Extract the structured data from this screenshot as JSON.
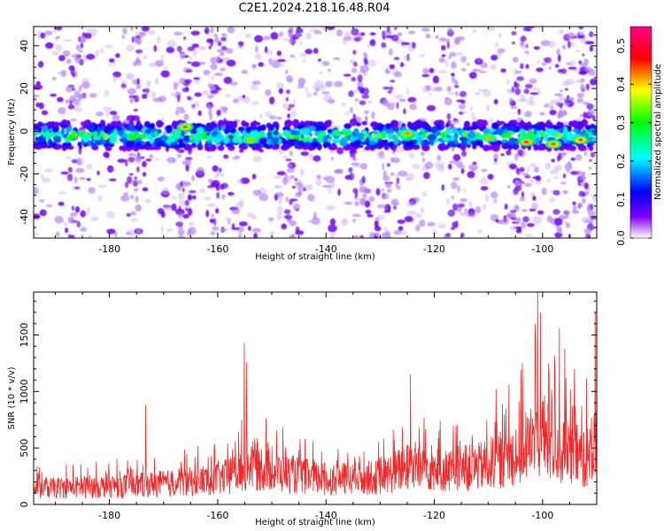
{
  "figure": {
    "title": "C2E1.2024.218.16.48.R04"
  },
  "chart_data": [
    {
      "type": "heatmap",
      "xlabel": "Height of straight line (km)",
      "ylabel": "Frequency (Hz)",
      "xlim": [
        -194,
        -90
      ],
      "ylim": [
        -50,
        49
      ],
      "x_ticks": [
        -180,
        -160,
        -140,
        -120,
        -100
      ],
      "y_ticks": [
        -40,
        -20,
        0,
        20,
        40
      ],
      "colorbar": {
        "label": "Normalized spectral amplitude",
        "range": [
          0.0,
          0.55
        ],
        "ticks": [
          0.0,
          0.1,
          0.2,
          0.3,
          0.4,
          0.5
        ],
        "colormap": [
          "#7f00ff",
          "#0000ff",
          "#00ffff",
          "#00ff00",
          "#ffff00",
          "#ff0000",
          "#ff00ff"
        ]
      },
      "band": {
        "center_hz": -2,
        "half_width_hz": 6
      },
      "peaks": [
        {
          "x": -166,
          "y": 2,
          "value": 0.45
        },
        {
          "x": -154,
          "y": -4,
          "value": 0.4
        },
        {
          "x": -125,
          "y": -1,
          "value": 0.42
        },
        {
          "x": -110,
          "y": -3,
          "value": 0.4
        },
        {
          "x": -103,
          "y": -5,
          "value": 0.52
        },
        {
          "x": -98,
          "y": -6,
          "value": 0.45
        },
        {
          "x": -93,
          "y": -4,
          "value": 0.5
        }
      ],
      "grid": false
    },
    {
      "type": "line",
      "xlabel": "Height of straight line (km)",
      "ylabel": "SNR (10 * v/v)",
      "xlim": [
        -194,
        -90
      ],
      "ylim": [
        0,
        1880
      ],
      "x_ticks": [
        -180,
        -160,
        -140,
        -120,
        -100
      ],
      "y_ticks": [
        0,
        500,
        1000,
        1500
      ],
      "line_color": "#ee2a2a",
      "baseline_segments": [
        {
          "x": -194,
          "y": 140
        },
        {
          "x": -175,
          "y": 170
        },
        {
          "x": -165,
          "y": 200
        },
        {
          "x": -158,
          "y": 250
        },
        {
          "x": -154,
          "y": 350
        },
        {
          "x": -148,
          "y": 280
        },
        {
          "x": -140,
          "y": 220
        },
        {
          "x": -130,
          "y": 240
        },
        {
          "x": -124,
          "y": 350
        },
        {
          "x": -118,
          "y": 300
        },
        {
          "x": -112,
          "y": 330
        },
        {
          "x": -106,
          "y": 420
        },
        {
          "x": -101,
          "y": 600
        },
        {
          "x": -96,
          "y": 450
        },
        {
          "x": -90,
          "y": 420
        }
      ],
      "spikes": [
        {
          "x": -173.3,
          "y": 880
        },
        {
          "x": -155.1,
          "y": 1430
        },
        {
          "x": -154.7,
          "y": 1260
        },
        {
          "x": -124.4,
          "y": 1150
        },
        {
          "x": -108.6,
          "y": 1020
        },
        {
          "x": -106.2,
          "y": 1060
        },
        {
          "x": -101.4,
          "y": 1600
        },
        {
          "x": -100.9,
          "y": 1880
        },
        {
          "x": -100.4,
          "y": 1700
        },
        {
          "x": -98.9,
          "y": 1250
        },
        {
          "x": -97.8,
          "y": 1320
        },
        {
          "x": -96.9,
          "y": 1560
        },
        {
          "x": -95.9,
          "y": 1380
        },
        {
          "x": -94.1,
          "y": 1200
        },
        {
          "x": -91.9,
          "y": 1110
        },
        {
          "x": -90.3,
          "y": 1700
        }
      ],
      "grid": false
    }
  ]
}
